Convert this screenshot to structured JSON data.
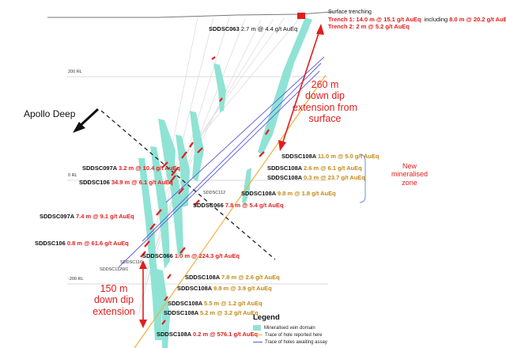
{
  "header": {
    "surface_title": "Surface trenching",
    "trench1": "Trench 1: 14.0 m @ 15.1 g/t AuEq",
    "trench1_including": "including",
    "trench1_incl_value": "8.0 m @ 20.2 g/t AuEq",
    "trench2": "Trench 2: 2 m @ 5.2 g/t AuEq"
  },
  "rl_labels": {
    "rl200": "200 RL",
    "rl0": "0 RL",
    "rlm200": "-200 RL"
  },
  "top_intercept": {
    "hole": "SDDSC063",
    "value": "2.7 m @ 4.4 g/t AuEq"
  },
  "apollo": "Apollo Deep",
  "callout_260": {
    "l1": "260 m",
    "l2": "down dip",
    "l3": "extension from",
    "l4": "surface"
  },
  "callout_150": {
    "l1": "150 m",
    "l2": "down dip",
    "l3": "extension"
  },
  "new_zone": {
    "l1": "New",
    "l2": "mineralised",
    "l3": "zone"
  },
  "hole_tags": {
    "sddsc112": "SDDSC112",
    "sddsc116": "SDDSC116",
    "sddsc112w1": "SDDSC112W1"
  },
  "intercepts_right": [
    {
      "hole": "SDDSC108A",
      "value": "11.0 m @ 5.0 g/t AuEq"
    },
    {
      "hole": "SDDSC108A",
      "value": "2.6 m @ 6.1 g/t AuEq"
    },
    {
      "hole": "SDDSC108A",
      "value": "0.3 m @ 23.7 g/t AuEq"
    },
    {
      "hole": "SDDSC108A",
      "value": "9.8 m @ 1.8 g/t AuEq"
    }
  ],
  "intercepts_left": [
    {
      "hole": "SDDSC097A",
      "value": "3.2 m @ 10.4 g/t AuEq"
    },
    {
      "hole": "SDDSC106",
      "value": "34.9 m @ 6.1 g/t AuEq"
    },
    {
      "hole": "SDDSC066",
      "value": "7.8 m @ 5.4 g/t AuEq"
    },
    {
      "hole": "SDDSC097A",
      "value": "7.4 m @ 9.1 g/t AuEq"
    },
    {
      "hole": "SDDSC106",
      "value": "0.8 m @ 61.6 g/t AuEq"
    },
    {
      "hole": "SDDSC066",
      "value": "1.0 m @ 224.3 g/t AuEq"
    }
  ],
  "intercepts_lower": [
    {
      "hole": "SDDSC108A",
      "value": "7.8 m @ 2.6 g/t AuEq"
    },
    {
      "hole": "SDDSC108A",
      "value": "9.8 m @ 3.9 g/t AuEq"
    },
    {
      "hole": "SDDSC108A",
      "value": "5.5 m @ 1.2 g/t AuEq"
    },
    {
      "hole": "SDDSC108A",
      "value": "5.2 m @ 3.2 g/t AuEq"
    },
    {
      "hole": "SDDSC108A",
      "value": "0.2 m @ 576.1 g/t AuEq"
    }
  ],
  "legend": {
    "title": "Legend",
    "items": [
      {
        "label": "Mineralised vein domain",
        "color": "#8fe3d4"
      },
      {
        "label": "Trace of hole reported here",
        "color": "#f0b040"
      },
      {
        "label": "Trace of holes awaiting assay",
        "color": "#5a5ad8"
      }
    ]
  },
  "colors": {
    "vein": "#8fe3d4",
    "red": "#e21d1d",
    "gold": "#c28a16",
    "blue": "#5a5ad8",
    "orange": "#f0b040"
  }
}
